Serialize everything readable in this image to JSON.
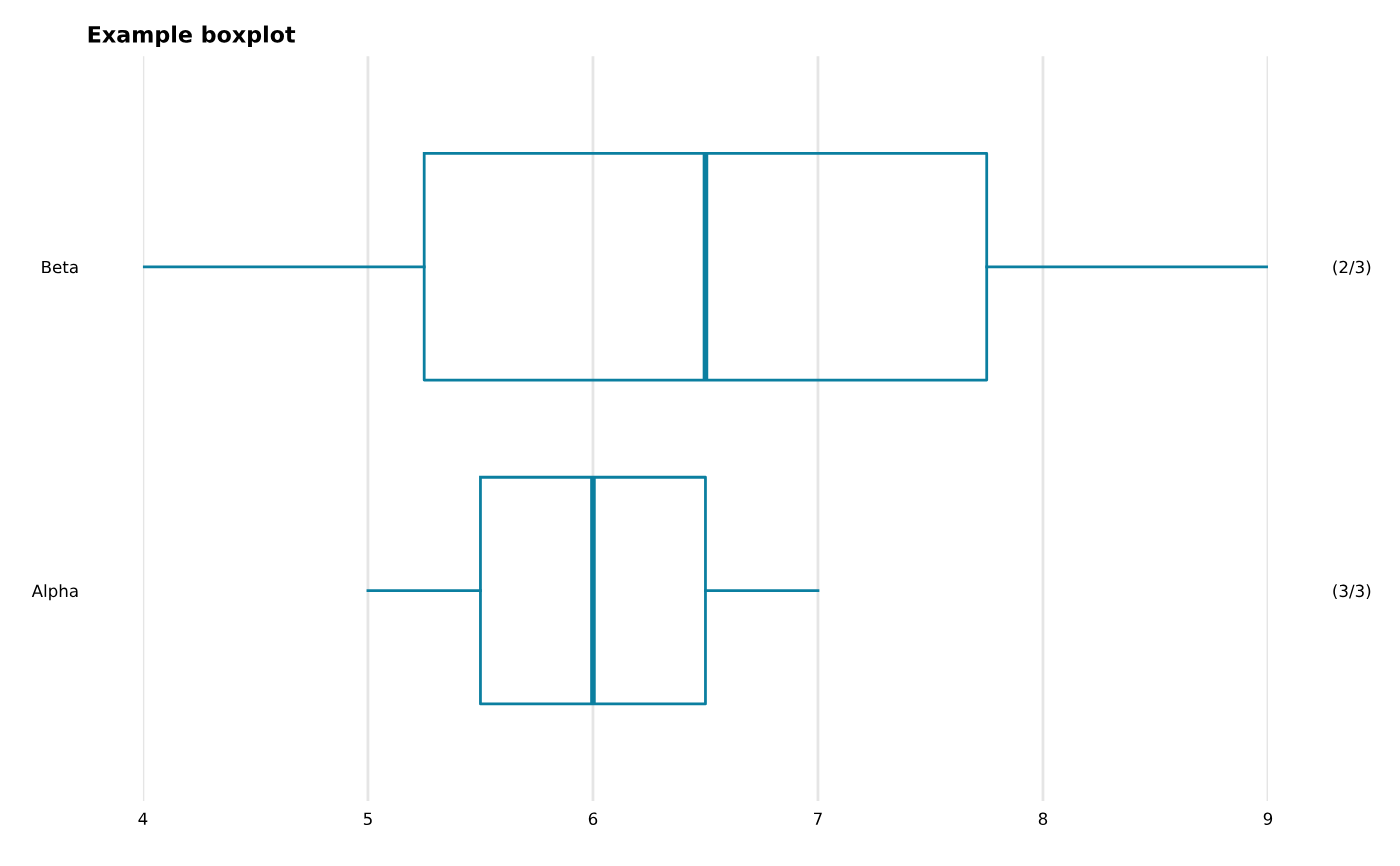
{
  "chart_data": {
    "type": "box",
    "title": "Example boxplot",
    "orientation": "horizontal",
    "categories": [
      "Beta",
      "Alpha"
    ],
    "y2_categories": [
      "(2/3)",
      "(3/3)"
    ],
    "series": [
      {
        "color": "#0b7fa0",
        "boxes": [
          {
            "low": 4,
            "q1": 5.25,
            "median": 6.5,
            "q3": 7.75,
            "high": 9
          },
          {
            "low": 5,
            "q1": 5.5,
            "median": 6,
            "q3": 6.5,
            "high": 7
          }
        ]
      }
    ],
    "xlim": [
      4,
      9
    ],
    "xticks": [
      4,
      5,
      6,
      7,
      8,
      9
    ],
    "grid": "x"
  }
}
